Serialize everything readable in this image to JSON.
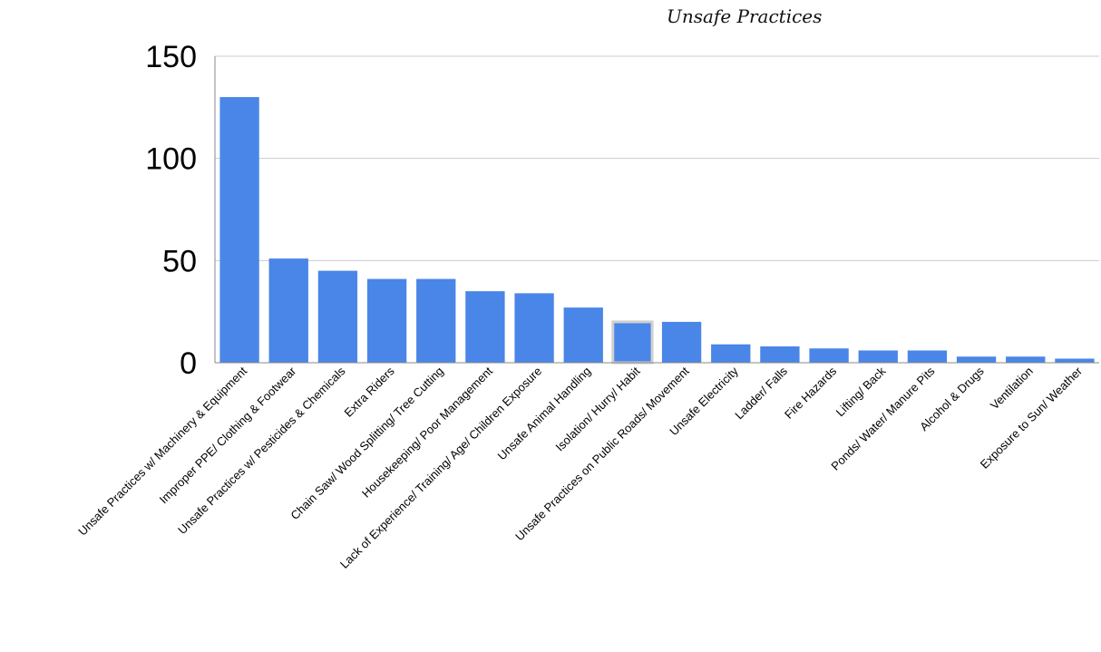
{
  "chart_data": {
    "type": "bar",
    "title": "Unsafe Practices",
    "categories": [
      "Unsafe Practices w/ Machinery & Equipment",
      "Improper PPE/ Clothing & Footwear",
      "Unsafe Practices w/ Pesticides & Chemicals",
      "Extra Riders",
      "Chain Saw/ Wood Splitting/ Tree Cutting",
      "Housekeeping/ Poor Management",
      "Lack of Experience/ Training/ Age/ Children Exposure",
      "Unsafe Animal Handling",
      "Isolation/ Hurry/ Habit",
      "Unsafe Practices on Public Roads/ Movement",
      "Unsafe Electricity",
      "Ladder/ Falls",
      "Fire Hazards",
      "Lifting/ Back",
      "Ponds/ Water/ Manure Pits",
      "Alcohol & Drugs",
      "Ventilation",
      "Exposure to Sun/ Weather"
    ],
    "values": [
      130,
      51,
      45,
      41,
      41,
      35,
      34,
      27,
      20,
      20,
      9,
      8,
      7,
      6,
      6,
      3,
      3,
      2
    ],
    "ylim": [
      0,
      150
    ],
    "yticks": [
      0,
      50,
      100,
      150
    ],
    "xlabel": "",
    "ylabel": "",
    "grid": true,
    "highlighted_category": "Isolation/ Hurry/ Habit",
    "colors": {
      "bar": "#4a86e8",
      "grid": "#cccccc",
      "axis": "#888888",
      "highlight_outline": "#d0d0d0"
    }
  }
}
